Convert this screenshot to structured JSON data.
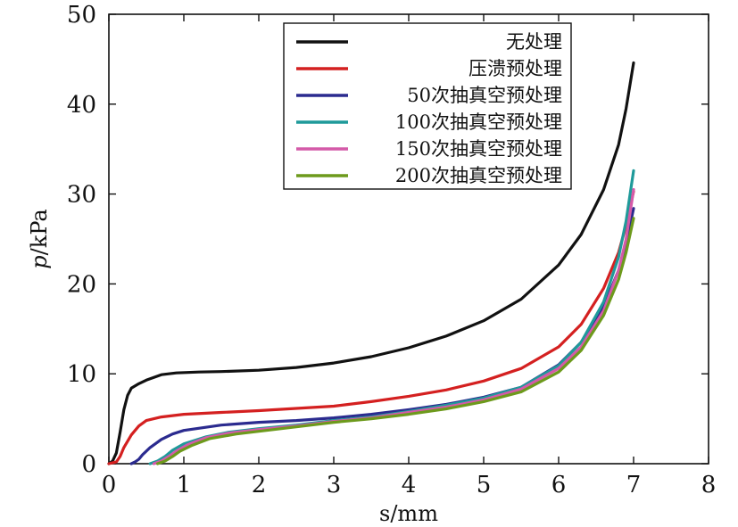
{
  "chart_data": {
    "type": "line",
    "title": "",
    "xlabel": "s/mm",
    "ylabel_italic": "p",
    "ylabel_rest": "/kPa",
    "xlim": [
      0,
      8
    ],
    "ylim": [
      0,
      50
    ],
    "xticks": [
      "0",
      "1",
      "2",
      "3",
      "4",
      "5",
      "6",
      "7",
      "8"
    ],
    "yticks": [
      "0",
      "10",
      "20",
      "30",
      "40",
      "50"
    ],
    "grid": false,
    "legend_position": "top-right",
    "series": [
      {
        "name": "无处理",
        "color": "#111111",
        "points": [
          [
            0,
            0
          ],
          [
            0.05,
            0.3
          ],
          [
            0.1,
            1.2
          ],
          [
            0.15,
            3.5
          ],
          [
            0.2,
            6.0
          ],
          [
            0.25,
            7.6
          ],
          [
            0.3,
            8.4
          ],
          [
            0.4,
            8.9
          ],
          [
            0.5,
            9.3
          ],
          [
            0.7,
            9.9
          ],
          [
            0.9,
            10.1
          ],
          [
            1.2,
            10.2
          ],
          [
            1.5,
            10.25
          ],
          [
            2,
            10.4
          ],
          [
            2.5,
            10.7
          ],
          [
            3,
            11.2
          ],
          [
            3.5,
            11.9
          ],
          [
            4,
            12.9
          ],
          [
            4.5,
            14.2
          ],
          [
            5,
            15.9
          ],
          [
            5.5,
            18.3
          ],
          [
            6,
            22.1
          ],
          [
            6.3,
            25.5
          ],
          [
            6.6,
            30.5
          ],
          [
            6.8,
            35.5
          ],
          [
            6.9,
            39.5
          ],
          [
            7,
            44.6
          ]
        ]
      },
      {
        "name": "压溃预处理",
        "color": "#d42020",
        "points": [
          [
            0,
            0
          ],
          [
            0.1,
            0.2
          ],
          [
            0.15,
            0.8
          ],
          [
            0.2,
            1.8
          ],
          [
            0.3,
            3.2
          ],
          [
            0.4,
            4.2
          ],
          [
            0.5,
            4.8
          ],
          [
            0.7,
            5.2
          ],
          [
            1,
            5.5
          ],
          [
            1.5,
            5.7
          ],
          [
            2,
            5.9
          ],
          [
            3,
            6.4
          ],
          [
            3.5,
            6.9
          ],
          [
            4,
            7.5
          ],
          [
            4.5,
            8.2
          ],
          [
            5,
            9.2
          ],
          [
            5.5,
            10.6
          ],
          [
            6,
            13.0
          ],
          [
            6.3,
            15.5
          ],
          [
            6.6,
            19.5
          ],
          [
            6.8,
            23.5
          ],
          [
            6.9,
            26.5
          ],
          [
            7,
            30.3
          ]
        ]
      },
      {
        "name": "50次抽真空预处理",
        "color": "#2b2b8f",
        "points": [
          [
            0.3,
            0
          ],
          [
            0.35,
            0.2
          ],
          [
            0.4,
            0.5
          ],
          [
            0.45,
            1.0
          ],
          [
            0.55,
            1.8
          ],
          [
            0.7,
            2.7
          ],
          [
            0.85,
            3.3
          ],
          [
            1,
            3.7
          ],
          [
            1.5,
            4.3
          ],
          [
            2,
            4.6
          ],
          [
            2.5,
            4.8
          ],
          [
            3,
            5.1
          ],
          [
            3.5,
            5.5
          ],
          [
            4,
            6.0
          ],
          [
            4.5,
            6.6
          ],
          [
            5,
            7.4
          ],
          [
            5.5,
            8.5
          ],
          [
            6,
            11.0
          ],
          [
            6.3,
            13.5
          ],
          [
            6.6,
            17.5
          ],
          [
            6.8,
            21.5
          ],
          [
            6.9,
            24.5
          ],
          [
            7,
            28.4
          ]
        ]
      },
      {
        "name": "100次抽真空预处理",
        "color": "#1f9a9a",
        "points": [
          [
            0.55,
            0
          ],
          [
            0.65,
            0.3
          ],
          [
            0.75,
            0.8
          ],
          [
            0.85,
            1.5
          ],
          [
            1,
            2.2
          ],
          [
            1.3,
            3.0
          ],
          [
            1.6,
            3.5
          ],
          [
            2,
            3.9
          ],
          [
            2.5,
            4.3
          ],
          [
            3,
            4.8
          ],
          [
            3.5,
            5.2
          ],
          [
            4,
            5.8
          ],
          [
            4.5,
            6.5
          ],
          [
            5,
            7.3
          ],
          [
            5.5,
            8.5
          ],
          [
            6,
            10.9
          ],
          [
            6.3,
            13.5
          ],
          [
            6.6,
            18.0
          ],
          [
            6.8,
            23.0
          ],
          [
            6.9,
            27.0
          ],
          [
            7,
            32.6
          ]
        ]
      },
      {
        "name": "150次抽真空预处理",
        "color": "#d45aa8",
        "points": [
          [
            0.6,
            0
          ],
          [
            0.7,
            0.3
          ],
          [
            0.8,
            0.8
          ],
          [
            0.9,
            1.4
          ],
          [
            1.05,
            2.1
          ],
          [
            1.3,
            2.9
          ],
          [
            1.6,
            3.4
          ],
          [
            2,
            3.8
          ],
          [
            2.5,
            4.2
          ],
          [
            3,
            4.7
          ],
          [
            3.5,
            5.1
          ],
          [
            4,
            5.7
          ],
          [
            4.5,
            6.3
          ],
          [
            5,
            7.1
          ],
          [
            5.5,
            8.3
          ],
          [
            6,
            10.6
          ],
          [
            6.3,
            13.0
          ],
          [
            6.6,
            17.0
          ],
          [
            6.8,
            21.5
          ],
          [
            6.9,
            25.0
          ],
          [
            7,
            30.5
          ]
        ]
      },
      {
        "name": "200次抽真空预处理",
        "color": "#6d9a1c",
        "points": [
          [
            0.65,
            0
          ],
          [
            0.75,
            0.3
          ],
          [
            0.85,
            0.8
          ],
          [
            0.95,
            1.4
          ],
          [
            1.1,
            2.0
          ],
          [
            1.35,
            2.8
          ],
          [
            1.7,
            3.3
          ],
          [
            2,
            3.6
          ],
          [
            2.5,
            4.1
          ],
          [
            3,
            4.6
          ],
          [
            3.5,
            5.0
          ],
          [
            4,
            5.5
          ],
          [
            4.5,
            6.1
          ],
          [
            5,
            6.9
          ],
          [
            5.5,
            8.0
          ],
          [
            6,
            10.2
          ],
          [
            6.3,
            12.6
          ],
          [
            6.6,
            16.5
          ],
          [
            6.8,
            20.5
          ],
          [
            6.9,
            23.5
          ],
          [
            7,
            27.3
          ]
        ]
      }
    ]
  }
}
